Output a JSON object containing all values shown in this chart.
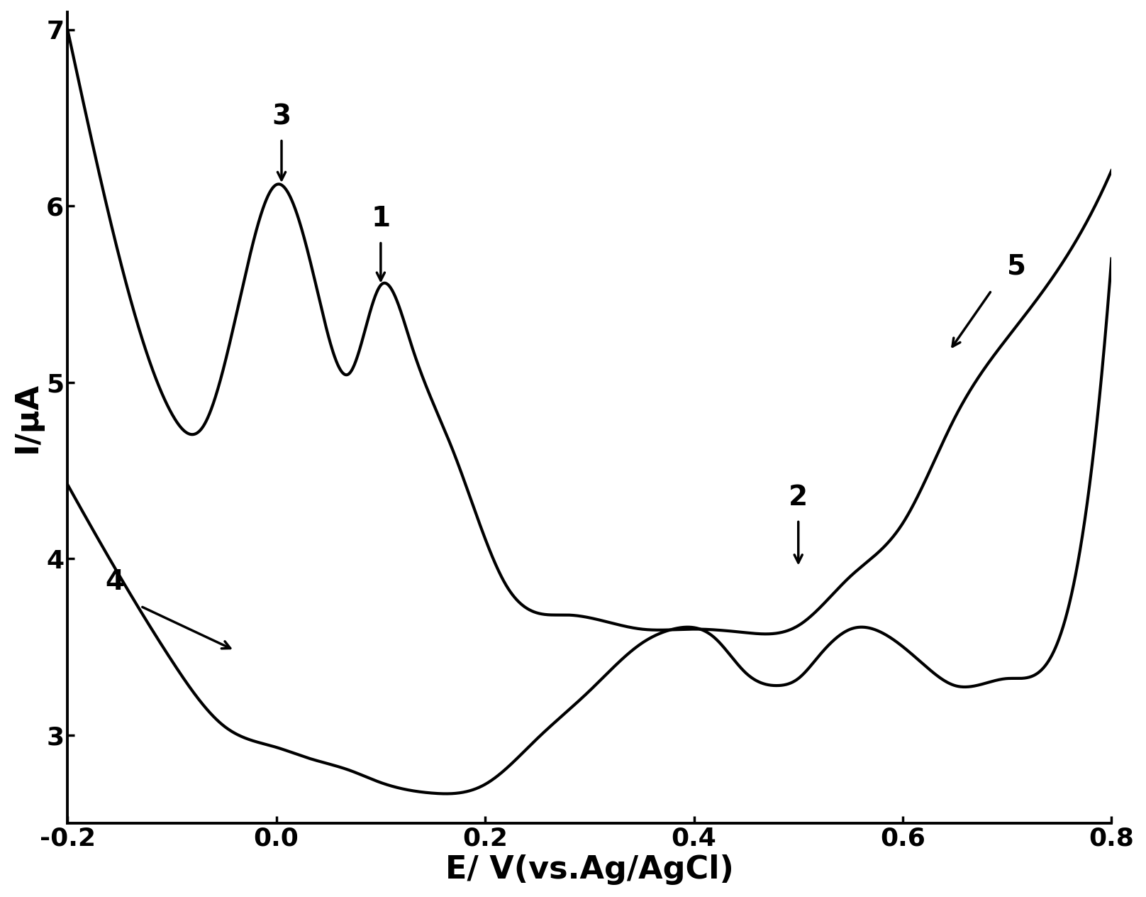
{
  "xlim": [
    -0.2,
    0.8
  ],
  "ylim": [
    2.5,
    7.1
  ],
  "xlabel": "E/ V(vs.Ag/AgCl)",
  "ylabel": "I/μA",
  "xticks": [
    -0.2,
    0.0,
    0.2,
    0.4,
    0.6,
    0.8
  ],
  "yticks": [
    3,
    4,
    5,
    6,
    7
  ],
  "background_color": "#ffffff",
  "line_color": "#000000",
  "line_width": 3.0,
  "xlabel_fontsize": 32,
  "ylabel_fontsize": 32,
  "tick_fontsize": 26,
  "annotation_fontsize": 28,
  "curve1_x": [
    -0.2,
    -0.15,
    -0.1,
    -0.07,
    -0.03,
    0.0,
    0.04,
    0.07,
    0.1,
    0.13,
    0.17,
    0.22,
    0.28,
    0.35,
    0.4,
    0.45,
    0.5,
    0.55,
    0.6,
    0.65,
    0.7,
    0.75,
    0.8
  ],
  "curve1_y": [
    7.0,
    5.7,
    4.82,
    4.75,
    5.6,
    6.12,
    5.5,
    5.05,
    5.55,
    5.2,
    4.6,
    3.85,
    3.68,
    3.6,
    3.6,
    3.58,
    3.62,
    3.9,
    4.2,
    4.8,
    5.25,
    5.65,
    6.2
  ],
  "curve2_x": [
    -0.2,
    -0.15,
    -0.1,
    -0.05,
    0.0,
    0.03,
    0.07,
    0.1,
    0.15,
    0.2,
    0.25,
    0.3,
    0.35,
    0.38,
    0.42,
    0.45,
    0.48,
    0.5,
    0.52,
    0.55,
    0.58,
    0.62,
    0.65,
    0.7,
    0.75,
    0.8
  ],
  "curve2_y": [
    4.42,
    3.9,
    3.42,
    3.05,
    2.93,
    2.87,
    2.8,
    2.73,
    2.67,
    2.72,
    2.98,
    3.25,
    3.52,
    3.6,
    3.55,
    3.35,
    3.28,
    3.32,
    3.45,
    3.6,
    3.58,
    3.4,
    3.28,
    3.32,
    3.55,
    5.7
  ]
}
